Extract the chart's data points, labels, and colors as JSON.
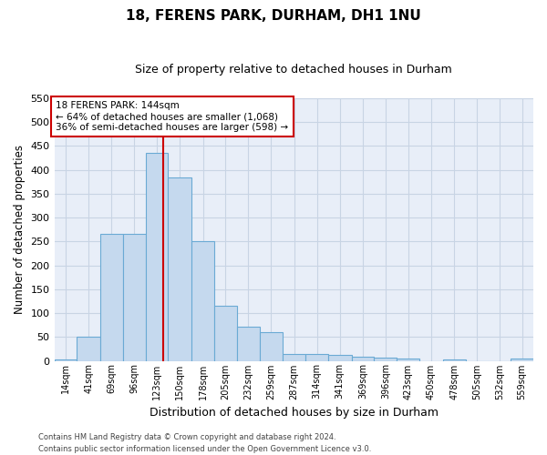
{
  "title": "18, FERENS PARK, DURHAM, DH1 1NU",
  "subtitle": "Size of property relative to detached houses in Durham",
  "xlabel": "Distribution of detached houses by size in Durham",
  "ylabel": "Number of detached properties",
  "bar_color": "#c5d9ee",
  "bar_edge_color": "#6aaad4",
  "grid_color": "#c8d4e4",
  "background_color": "#e8eef8",
  "bin_labels": [
    "14sqm",
    "41sqm",
    "69sqm",
    "96sqm",
    "123sqm",
    "150sqm",
    "178sqm",
    "205sqm",
    "232sqm",
    "259sqm",
    "287sqm",
    "314sqm",
    "341sqm",
    "369sqm",
    "396sqm",
    "423sqm",
    "450sqm",
    "478sqm",
    "505sqm",
    "532sqm",
    "559sqm"
  ],
  "bar_values": [
    3,
    50,
    265,
    265,
    435,
    383,
    250,
    115,
    72,
    60,
    15,
    15,
    12,
    9,
    7,
    5,
    0,
    3,
    0,
    0,
    5
  ],
  "bin_edges": [
    14,
    41,
    69,
    96,
    123,
    150,
    178,
    205,
    232,
    259,
    287,
    314,
    341,
    369,
    396,
    423,
    450,
    478,
    505,
    532,
    559,
    586
  ],
  "property_size": 144,
  "ylim": [
    0,
    550
  ],
  "yticks": [
    0,
    50,
    100,
    150,
    200,
    250,
    300,
    350,
    400,
    450,
    500,
    550
  ],
  "annotation_text": "18 FERENS PARK: 144sqm\n← 64% of detached houses are smaller (1,068)\n36% of semi-detached houses are larger (598) →",
  "annotation_box_color": "#ffffff",
  "annotation_box_edge": "#cc0000",
  "vline_color": "#cc0000",
  "footer_line1": "Contains HM Land Registry data © Crown copyright and database right 2024.",
  "footer_line2": "Contains public sector information licensed under the Open Government Licence v3.0."
}
